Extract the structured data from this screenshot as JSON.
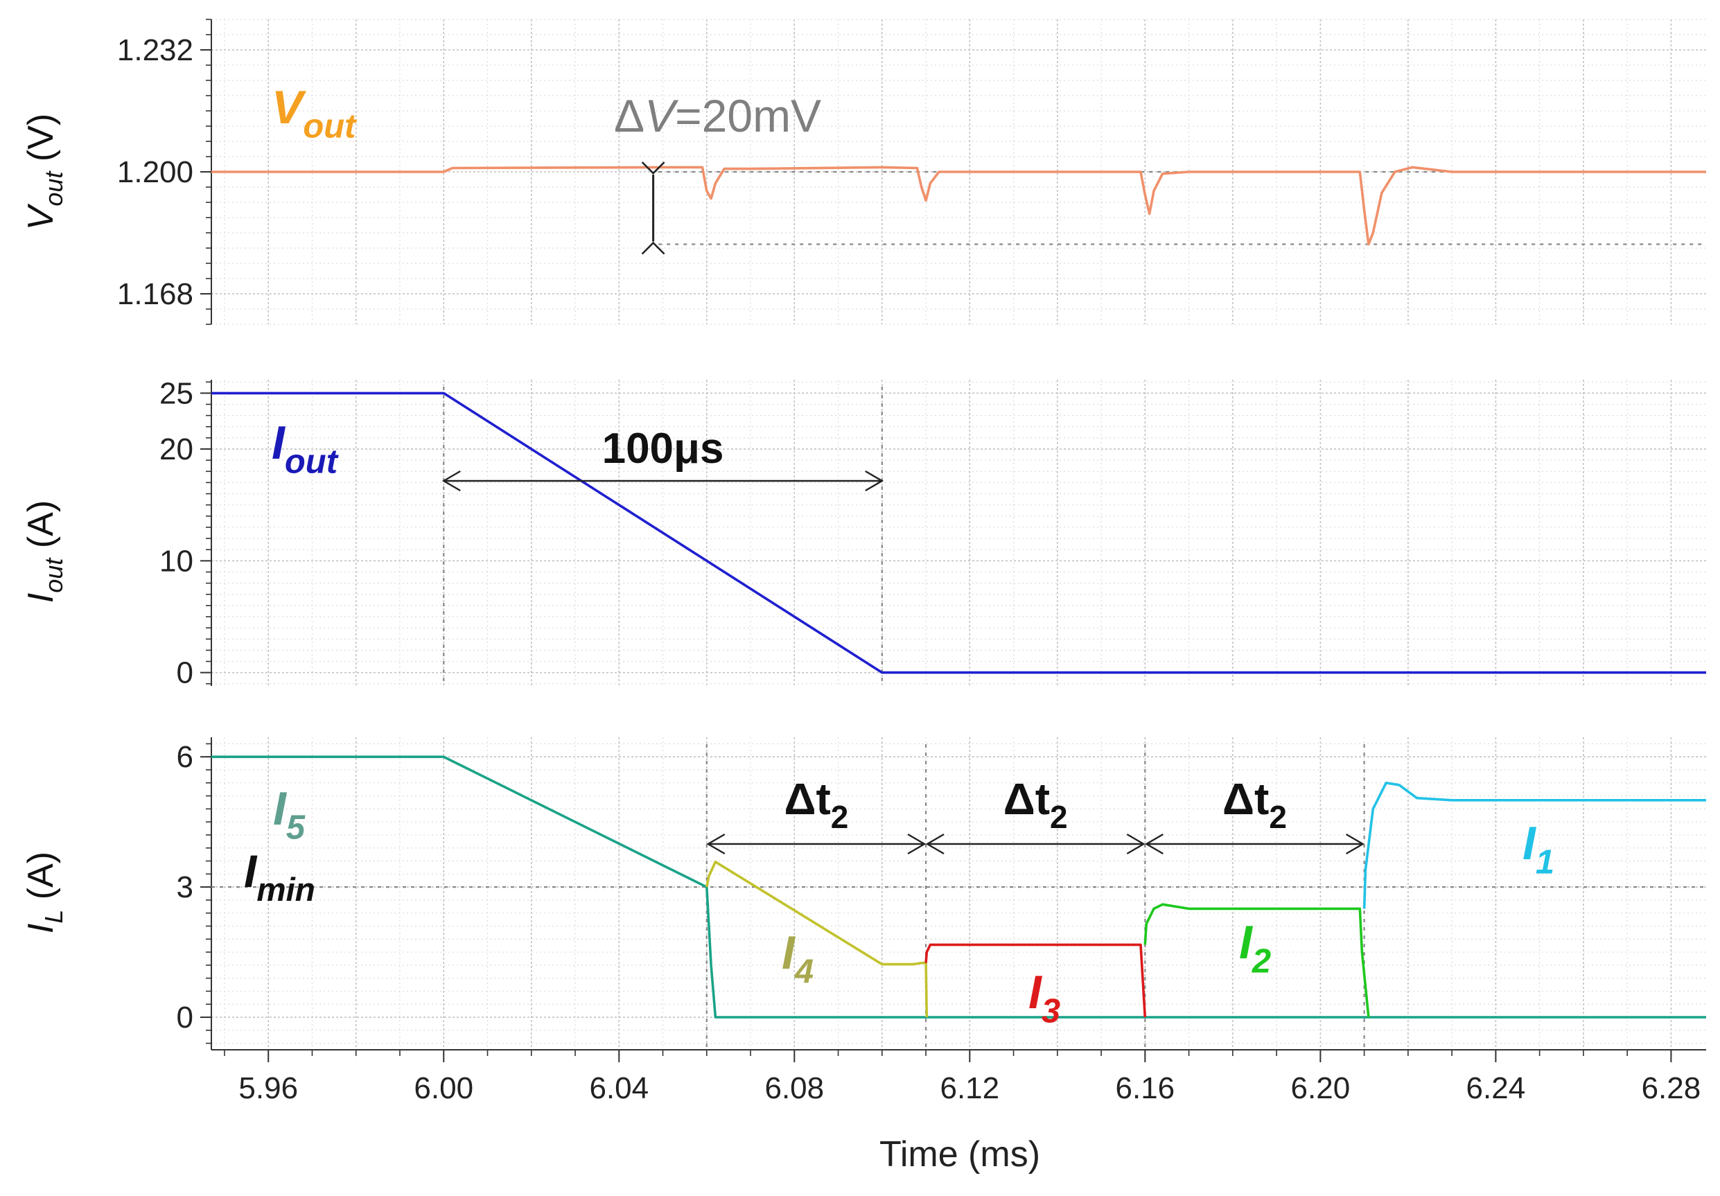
{
  "chart_data": [
    {
      "type": "line",
      "panel": "vout",
      "ylabel": {
        "main": "V",
        "sub": "out",
        "unit": " (V)"
      },
      "ylim": [
        1.16,
        1.24
      ],
      "yticks": [
        1.168,
        1.2,
        1.232
      ],
      "ytick_labels": [
        "1.168",
        "1.200",
        "1.232"
      ],
      "xlim": [
        5.947,
        6.288
      ],
      "grid": true,
      "series": [
        {
          "name": "Vout",
          "color": "#f0906a",
          "x": [
            5.947,
            6.0,
            6.002,
            6.05,
            6.059,
            6.06,
            6.061,
            6.062,
            6.064,
            6.07,
            6.1,
            6.108,
            6.109,
            6.11,
            6.111,
            6.113,
            6.12,
            6.159,
            6.16,
            6.161,
            6.162,
            6.164,
            6.17,
            6.209,
            6.21,
            6.211,
            6.212,
            6.214,
            6.217,
            6.221,
            6.23,
            6.288
          ],
          "y": [
            1.2,
            1.2,
            1.201,
            1.2012,
            1.2012,
            1.195,
            1.193,
            1.197,
            1.2008,
            1.2008,
            1.2012,
            1.201,
            1.196,
            1.1925,
            1.197,
            1.2,
            1.2,
            1.2,
            1.194,
            1.189,
            1.195,
            1.1995,
            1.2,
            1.2,
            1.19,
            1.181,
            1.184,
            1.1945,
            1.2,
            1.2012,
            1.2,
            1.2
          ]
        }
      ],
      "annotations": {
        "label": {
          "main": "V",
          "sub": "out"
        },
        "delta": {
          "symbol": "Δ",
          "var": "V",
          "text": "=20mV"
        }
      }
    },
    {
      "type": "line",
      "panel": "iout",
      "ylabel": {
        "main": "I",
        "sub": "out",
        "unit": " (A)"
      },
      "ylim": [
        -1.2,
        26.2
      ],
      "yticks": [
        0,
        10,
        20,
        25
      ],
      "ytick_labels": [
        "0",
        "10",
        "20",
        "25"
      ],
      "xlim": [
        5.947,
        6.288
      ],
      "grid": true,
      "series": [
        {
          "name": "Iout",
          "color": "#1f1fd0",
          "x": [
            5.947,
            6.0,
            6.1,
            6.288
          ],
          "y": [
            25,
            25,
            0,
            0
          ]
        }
      ],
      "annotations": {
        "label": {
          "main": "I",
          "sub": "out"
        },
        "duration": "100μs"
      }
    },
    {
      "type": "line",
      "panel": "il",
      "ylabel": {
        "main": "I",
        "sub": "L",
        "unit": " (A)"
      },
      "ylim": [
        -0.75,
        6.45
      ],
      "yticks": [
        0,
        3,
        6
      ],
      "ytick_labels": [
        "0",
        "3",
        "6"
      ],
      "xlabel": "Time (ms)",
      "xlim": [
        5.947,
        6.288
      ],
      "xticks": [
        5.96,
        6.0,
        6.04,
        6.08,
        6.12,
        6.16,
        6.2,
        6.24,
        6.28
      ],
      "xtick_labels": [
        "5.96",
        "6.00",
        "6.04",
        "6.08",
        "6.12",
        "6.16",
        "6.20",
        "6.24",
        "6.28"
      ],
      "grid": true,
      "series": [
        {
          "name": "I5",
          "color": "#1aa388",
          "x": [
            5.947,
            6.0,
            6.06,
            6.061,
            6.062,
            6.288
          ],
          "y": [
            6,
            6,
            3,
            1.2,
            0,
            0
          ]
        },
        {
          "name": "I4",
          "color": "#c2c22e",
          "x": [
            6.06,
            6.0605,
            6.062,
            6.1,
            6.107,
            6.109,
            6.11,
            6.1102
          ],
          "y": [
            3,
            3.25,
            3.58,
            1.22,
            1.22,
            1.25,
            1.25,
            0
          ]
        },
        {
          "name": "I3",
          "color": "#dd1a1a",
          "x": [
            6.11,
            6.1102,
            6.111,
            6.159,
            6.16
          ],
          "y": [
            1.25,
            1.5,
            1.67,
            1.67,
            0
          ]
        },
        {
          "name": "I2",
          "color": "#1ec81e",
          "x": [
            6.16,
            6.1603,
            6.162,
            6.164,
            6.17,
            6.209,
            6.2095,
            6.211
          ],
          "y": [
            1.67,
            2.15,
            2.5,
            2.6,
            2.5,
            2.5,
            1.5,
            0
          ]
        },
        {
          "name": "I1",
          "color": "#22c2e6",
          "x": [
            6.21,
            6.2103,
            6.212,
            6.215,
            6.218,
            6.222,
            6.23,
            6.288
          ],
          "y": [
            2.5,
            3.4,
            4.8,
            5.4,
            5.35,
            5.05,
            5.0,
            5.0
          ]
        }
      ],
      "reference_lines": [
        {
          "y": 3
        }
      ],
      "annotations": {
        "imin": {
          "main": "I",
          "sub": "min"
        },
        "labels": [
          {
            "series": "I5",
            "main": "I",
            "sub": "5",
            "color": "#5f9f8f"
          },
          {
            "series": "I4",
            "main": "I",
            "sub": "4",
            "color": "#a8a84e"
          },
          {
            "series": "I3",
            "main": "I",
            "sub": "3",
            "color": "#dd1a1a"
          },
          {
            "series": "I2",
            "main": "I",
            "sub": "2",
            "color": "#1ec81e"
          },
          {
            "series": "I1",
            "main": "I",
            "sub": "1",
            "color": "#22c2e6"
          }
        ],
        "interval": {
          "main": "Δt",
          "sub": "2"
        },
        "intervals": [
          [
            6.06,
            6.11
          ],
          [
            6.11,
            6.16
          ],
          [
            6.16,
            6.21
          ]
        ]
      }
    }
  ],
  "colors": {
    "vout_label": "#f5a020",
    "iout_label": "#1a1ab8",
    "delta_label": "#7f7f7f"
  }
}
